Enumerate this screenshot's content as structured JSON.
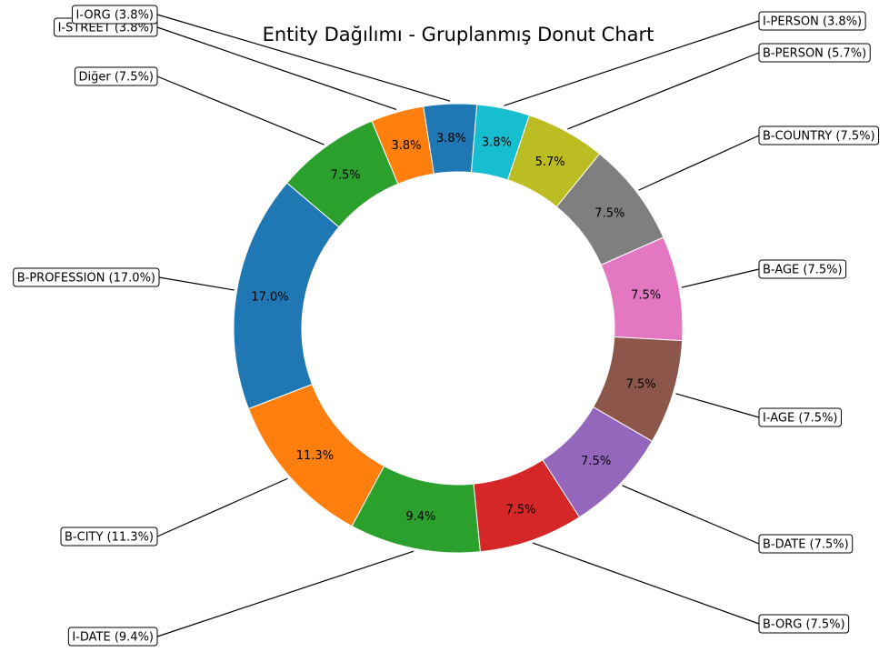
{
  "chart_data": {
    "type": "pie",
    "subtype": "donut",
    "title": "Entity Dağılımı - Gruplanmış Donut Chart",
    "slices": [
      {
        "label": "I-PERSON",
        "value": 3.8,
        "pct_label": "3.8%",
        "legend": "I-PERSON (3.8%)",
        "color": "#17becf"
      },
      {
        "label": "B-PERSON",
        "value": 5.7,
        "pct_label": "5.7%",
        "legend": "B-PERSON (5.7%)",
        "color": "#bcbd22"
      },
      {
        "label": "B-COUNTRY",
        "value": 7.5,
        "pct_label": "7.5%",
        "legend": "B-COUNTRY (7.5%)",
        "color": "#7f7f7f"
      },
      {
        "label": "B-AGE",
        "value": 7.5,
        "pct_label": "7.5%",
        "legend": "B-AGE (7.5%)",
        "color": "#e377c2"
      },
      {
        "label": "I-AGE",
        "value": 7.5,
        "pct_label": "7.5%",
        "legend": "I-AGE (7.5%)",
        "color": "#8c564b"
      },
      {
        "label": "B-DATE",
        "value": 7.5,
        "pct_label": "7.5%",
        "legend": "B-DATE (7.5%)",
        "color": "#9467bd"
      },
      {
        "label": "B-ORG",
        "value": 7.5,
        "pct_label": "7.5%",
        "legend": "B-ORG (7.5%)",
        "color": "#d62728"
      },
      {
        "label": "I-DATE",
        "value": 9.4,
        "pct_label": "9.4%",
        "legend": "I-DATE (9.4%)",
        "color": "#2ca02c"
      },
      {
        "label": "B-CITY",
        "value": 11.3,
        "pct_label": "11.3%",
        "legend": "B-CITY (11.3%)",
        "color": "#ff7f0e"
      },
      {
        "label": "B-PROFESSION",
        "value": 17.0,
        "pct_label": "17.0%",
        "legend": "B-PROFESSION (17.0%)",
        "color": "#1f77b4"
      },
      {
        "label": "Diğer",
        "value": 7.5,
        "pct_label": "7.5%",
        "legend": "Diğer (7.5%)",
        "color": "#2ca02c"
      },
      {
        "label": "I-STREET",
        "value": 3.8,
        "pct_label": "3.8%",
        "legend": "I-STREET (3.8%)",
        "color": "#ff7f0e"
      },
      {
        "label": "I-ORG",
        "value": 3.8,
        "pct_label": "3.8%",
        "legend": "I-ORG (3.8%)",
        "color": "#1f77b4"
      }
    ],
    "legend_placement": "callouts around ring",
    "direction": "clockwise from top"
  }
}
